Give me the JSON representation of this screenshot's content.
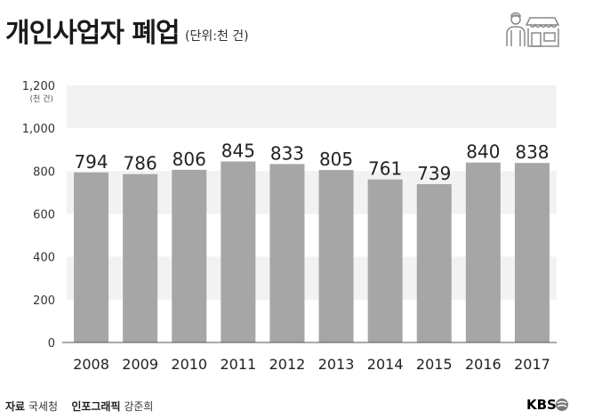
{
  "header": {
    "title": "개인사업자 폐업",
    "unit_note": "(단위:천 건)"
  },
  "footer": {
    "source_label": "자료",
    "source_value": "국세청",
    "graphic_label": "인포그래픽",
    "graphic_value": "강준희",
    "logo_text": "KBS"
  },
  "colors": {
    "bar": "#a6a6a6",
    "band": "#f2f2f2",
    "text": "#222222"
  },
  "chart_data": {
    "type": "bar",
    "categories": [
      "2008",
      "2009",
      "2010",
      "2011",
      "2012",
      "2013",
      "2014",
      "2015",
      "2016",
      "2017"
    ],
    "values": [
      794,
      786,
      806,
      845,
      833,
      805,
      761,
      739,
      840,
      838
    ],
    "value_labels": [
      "794",
      "786",
      "806",
      "845",
      "833",
      "805",
      "761",
      "739",
      "840",
      "838"
    ],
    "ylim": [
      0,
      1200
    ],
    "yticks": [
      0,
      200,
      400,
      600,
      800,
      1000,
      1200
    ],
    "ytick_labels": [
      "0",
      "200",
      "400",
      "600",
      "800",
      "1,000",
      "1,200"
    ],
    "y_unit_label": "(천 건)",
    "title": "",
    "xlabel": "",
    "ylabel": ""
  }
}
